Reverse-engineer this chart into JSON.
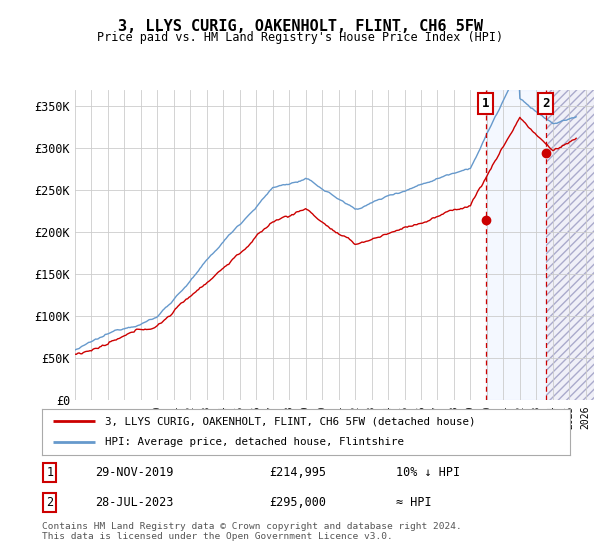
{
  "title": "3, LLYS CURIG, OAKENHOLT, FLINT, CH6 5FW",
  "subtitle": "Price paid vs. HM Land Registry's House Price Index (HPI)",
  "ylabel_ticks": [
    "£0",
    "£50K",
    "£100K",
    "£150K",
    "£200K",
    "£250K",
    "£300K",
    "£350K"
  ],
  "ytick_values": [
    0,
    50000,
    100000,
    150000,
    200000,
    250000,
    300000,
    350000
  ],
  "ylim": [
    0,
    370000
  ],
  "xlim_start": 1995,
  "xlim_end": 2026.5,
  "hpi_color": "#6699cc",
  "price_color": "#cc0000",
  "marker1_date_x": 2019.92,
  "marker1_price": 214995,
  "marker2_date_x": 2023.58,
  "marker2_price": 295000,
  "vline1_x": 2019.92,
  "vline2_x": 2023.58,
  "shade_start": 2019.92,
  "shade_end": 2023.58,
  "hatch_start": 2023.58,
  "hatch_end": 2026.5,
  "legend_line1": "3, LLYS CURIG, OAKENHOLT, FLINT, CH6 5FW (detached house)",
  "legend_line2": "HPI: Average price, detached house, Flintshire",
  "table_row1_num": "1",
  "table_row1_date": "29-NOV-2019",
  "table_row1_price": "£214,995",
  "table_row1_rel": "10% ↓ HPI",
  "table_row2_num": "2",
  "table_row2_date": "28-JUL-2023",
  "table_row2_price": "£295,000",
  "table_row2_rel": "≈ HPI",
  "footnote": "Contains HM Land Registry data © Crown copyright and database right 2024.\nThis data is licensed under the Open Government Licence v3.0.",
  "background_color": "#ffffff",
  "grid_color": "#cccccc"
}
